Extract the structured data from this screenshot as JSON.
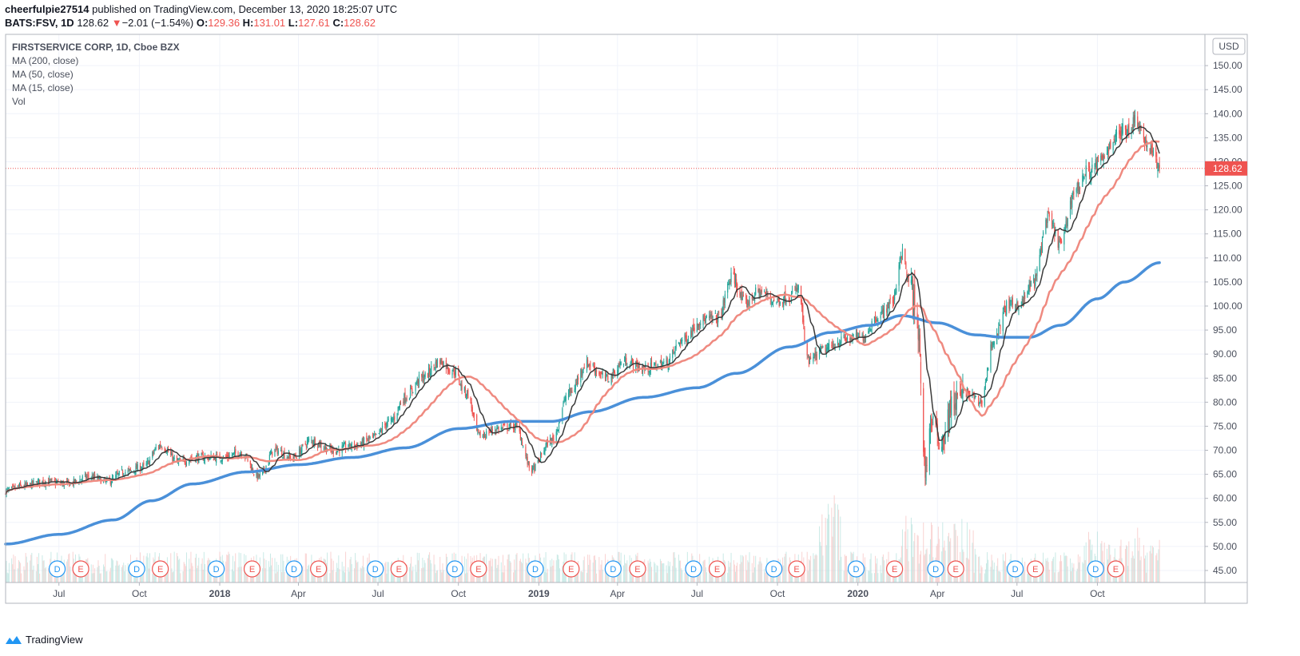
{
  "header": {
    "author": "cheerfulpie27514",
    "published_text": "published on TradingView.com, December 13, 2020 18:25:07 UTC",
    "symbol": "BATS:FSV, 1D",
    "last": "128.62",
    "change_arrow": "▼",
    "change": "−2.01 (−1.54%)",
    "o_label": "O:",
    "o_value": "129.36",
    "h_label": "H:",
    "h_value": "131.01",
    "l_label": "L:",
    "l_value": "127.61",
    "c_label": "C:",
    "c_value": "128.62"
  },
  "legend": {
    "title": "FIRSTSERVICE CORP, 1D, Cboe BZX",
    "ma200": "MA (200, close)",
    "ma50": "MA (50, close)",
    "ma15": "MA (15, close)",
    "vol": "Vol"
  },
  "footer": {
    "brand": "TradingView"
  },
  "colors": {
    "up": "#26a69a",
    "down": "#ef5350",
    "ma200": "#4a90d9",
    "ma50": "#ef8a80",
    "ma15": "#3a3a3a",
    "price_label_bg": "#ef5350"
  },
  "chart_data": {
    "type": "candlestick",
    "currency": "USD",
    "last_price": 128.62,
    "last_price_label": "128.62",
    "y_ticks": [
      45,
      50,
      55,
      60,
      65,
      70,
      75,
      80,
      85,
      90,
      95,
      100,
      105,
      110,
      115,
      120,
      125,
      130,
      135,
      140,
      145,
      150
    ],
    "y_tick_labels": [
      "45.00",
      "50.00",
      "55.00",
      "60.00",
      "65.00",
      "70.00",
      "75.00",
      "80.00",
      "85.00",
      "90.00",
      "95.00",
      "100.00",
      "105.00",
      "110.00",
      "115.00",
      "120.00",
      "125.00",
      "130.00",
      "135.00",
      "140.00",
      "145.00",
      "150.00"
    ],
    "ylim": [
      42.5,
      156.5
    ],
    "x_ticks": [
      {
        "date": "2017-07-01",
        "label": "Jul",
        "bold": false
      },
      {
        "date": "2017-10-01",
        "label": "Oct",
        "bold": false
      },
      {
        "date": "2018-01-01",
        "label": "2018",
        "bold": true
      },
      {
        "date": "2018-04-01",
        "label": "Apr",
        "bold": false
      },
      {
        "date": "2018-07-01",
        "label": "Jul",
        "bold": false
      },
      {
        "date": "2018-10-01",
        "label": "Oct",
        "bold": false
      },
      {
        "date": "2019-01-01",
        "label": "2019",
        "bold": true
      },
      {
        "date": "2019-04-01",
        "label": "Apr",
        "bold": false
      },
      {
        "date": "2019-07-01",
        "label": "Jul",
        "bold": false
      },
      {
        "date": "2019-10-01",
        "label": "Oct",
        "bold": false
      },
      {
        "date": "2020-01-01",
        "label": "2020",
        "bold": true
      },
      {
        "date": "2020-04-01",
        "label": "Apr",
        "bold": false
      },
      {
        "date": "2020-07-01",
        "label": "Jul",
        "bold": false
      },
      {
        "date": "2020-10-01",
        "label": "Oct",
        "bold": false
      }
    ],
    "xlim": [
      "2017-05-01",
      "2021-02-01"
    ],
    "events": [
      {
        "type": "D",
        "date": "2017-06-29"
      },
      {
        "type": "E",
        "date": "2017-07-26"
      },
      {
        "type": "D",
        "date": "2017-09-28"
      },
      {
        "type": "E",
        "date": "2017-10-25"
      },
      {
        "type": "D",
        "date": "2017-12-28"
      },
      {
        "type": "E",
        "date": "2018-02-07"
      },
      {
        "type": "D",
        "date": "2018-03-27"
      },
      {
        "type": "E",
        "date": "2018-04-24"
      },
      {
        "type": "D",
        "date": "2018-06-28"
      },
      {
        "type": "E",
        "date": "2018-07-25"
      },
      {
        "type": "D",
        "date": "2018-09-27"
      },
      {
        "type": "E",
        "date": "2018-10-24"
      },
      {
        "type": "D",
        "date": "2018-12-28"
      },
      {
        "type": "E",
        "date": "2019-02-07"
      },
      {
        "type": "D",
        "date": "2019-03-27"
      },
      {
        "type": "E",
        "date": "2019-04-24"
      },
      {
        "type": "D",
        "date": "2019-06-27"
      },
      {
        "type": "E",
        "date": "2019-07-24"
      },
      {
        "type": "D",
        "date": "2019-09-27"
      },
      {
        "type": "E",
        "date": "2019-10-23"
      },
      {
        "type": "D",
        "date": "2019-12-30"
      },
      {
        "type": "E",
        "date": "2020-02-12"
      },
      {
        "type": "D",
        "date": "2020-03-30"
      },
      {
        "type": "E",
        "date": "2020-04-22"
      },
      {
        "type": "D",
        "date": "2020-06-29"
      },
      {
        "type": "E",
        "date": "2020-07-22"
      },
      {
        "type": "D",
        "date": "2020-09-29"
      },
      {
        "type": "E",
        "date": "2020-10-22"
      }
    ],
    "price_anchors": [
      [
        "2017-05-01",
        61.5
      ],
      [
        "2017-05-20",
        62.5
      ],
      [
        "2017-06-15",
        63.5
      ],
      [
        "2017-07-10",
        63.0
      ],
      [
        "2017-08-05",
        64.5
      ],
      [
        "2017-08-25",
        63.5
      ],
      [
        "2017-09-15",
        65.5
      ],
      [
        "2017-10-05",
        66.5
      ],
      [
        "2017-10-25",
        71.0
      ],
      [
        "2017-11-15",
        67.5
      ],
      [
        "2017-12-05",
        68.5
      ],
      [
        "2018-01-05",
        68.5
      ],
      [
        "2018-01-25",
        69.5
      ],
      [
        "2018-02-15",
        64.5
      ],
      [
        "2018-03-05",
        70.0
      ],
      [
        "2018-03-25",
        68.5
      ],
      [
        "2018-04-15",
        72.0
      ],
      [
        "2018-05-10",
        70.0
      ],
      [
        "2018-06-05",
        71.0
      ],
      [
        "2018-06-25",
        72.5
      ],
      [
        "2018-07-15",
        76.0
      ],
      [
        "2018-08-01",
        81.0
      ],
      [
        "2018-08-20",
        85.0
      ],
      [
        "2018-09-10",
        88.5
      ],
      [
        "2018-09-25",
        86.5
      ],
      [
        "2018-10-10",
        82.0
      ],
      [
        "2018-10-25",
        73.0
      ],
      [
        "2018-11-15",
        74.5
      ],
      [
        "2018-12-05",
        75.0
      ],
      [
        "2018-12-24",
        66.0
      ],
      [
        "2019-01-15",
        72.0
      ],
      [
        "2019-02-05",
        82.0
      ],
      [
        "2019-02-25",
        88.0
      ],
      [
        "2019-03-20",
        85.0
      ],
      [
        "2019-04-10",
        88.5
      ],
      [
        "2019-05-01",
        87.0
      ],
      [
        "2019-05-25",
        88.0
      ],
      [
        "2019-06-15",
        93.0
      ],
      [
        "2019-07-05",
        97.0
      ],
      [
        "2019-07-25",
        97.5
      ],
      [
        "2019-08-10",
        106.0
      ],
      [
        "2019-08-25",
        100.5
      ],
      [
        "2019-09-10",
        103.0
      ],
      [
        "2019-09-30",
        101.0
      ],
      [
        "2019-10-15",
        102.0
      ],
      [
        "2019-10-25",
        103.5
      ],
      [
        "2019-11-05",
        88.5
      ],
      [
        "2019-11-25",
        91.0
      ],
      [
        "2019-12-15",
        93.0
      ],
      [
        "2020-01-05",
        93.5
      ],
      [
        "2020-01-25",
        98.0
      ],
      [
        "2020-02-10",
        101.0
      ],
      [
        "2020-02-20",
        111.0
      ],
      [
        "2020-03-01",
        104.0
      ],
      [
        "2020-03-10",
        94.0
      ],
      [
        "2020-03-18",
        66.0
      ],
      [
        "2020-03-25",
        76.0
      ],
      [
        "2020-04-05",
        72.0
      ],
      [
        "2020-04-20",
        80.0
      ],
      [
        "2020-05-05",
        82.0
      ],
      [
        "2020-05-20",
        80.0
      ],
      [
        "2020-06-05",
        93.0
      ],
      [
        "2020-06-20",
        100.0
      ],
      [
        "2020-07-05",
        100.5
      ],
      [
        "2020-07-20",
        105.0
      ],
      [
        "2020-08-05",
        118.0
      ],
      [
        "2020-08-20",
        113.0
      ],
      [
        "2020-09-05",
        124.0
      ],
      [
        "2020-09-20",
        128.0
      ],
      [
        "2020-10-05",
        130.0
      ],
      [
        "2020-10-20",
        135.0
      ],
      [
        "2020-11-05",
        137.0
      ],
      [
        "2020-11-15",
        139.0
      ],
      [
        "2020-11-25",
        134.0
      ],
      [
        "2020-12-05",
        131.0
      ],
      [
        "2020-12-11",
        128.62
      ]
    ],
    "ma200_anchors": [
      [
        "2017-05-01",
        50.5
      ],
      [
        "2017-07-01",
        52.5
      ],
      [
        "2017-09-01",
        55.5
      ],
      [
        "2017-10-15",
        59.5
      ],
      [
        "2017-12-01",
        63.0
      ],
      [
        "2018-02-01",
        65.5
      ],
      [
        "2018-04-01",
        67.0
      ],
      [
        "2018-06-01",
        68.5
      ],
      [
        "2018-08-01",
        70.5
      ],
      [
        "2018-10-01",
        74.5
      ],
      [
        "2018-12-01",
        76.0
      ],
      [
        "2019-01-15",
        76.0
      ],
      [
        "2019-03-01",
        78.0
      ],
      [
        "2019-05-01",
        81.0
      ],
      [
        "2019-07-01",
        83.0
      ],
      [
        "2019-08-15",
        86.0
      ],
      [
        "2019-10-15",
        91.5
      ],
      [
        "2019-12-01",
        94.5
      ],
      [
        "2020-01-15",
        96.0
      ],
      [
        "2020-02-20",
        98.0
      ],
      [
        "2020-04-01",
        96.5
      ],
      [
        "2020-05-15",
        94.0
      ],
      [
        "2020-06-15",
        93.5
      ],
      [
        "2020-07-15",
        93.5
      ],
      [
        "2020-08-20",
        96.0
      ],
      [
        "2020-10-01",
        101.5
      ],
      [
        "2020-11-01",
        105.0
      ],
      [
        "2020-12-11",
        109.0
      ]
    ],
    "volume_note": "volume bars plotted at bottom of pane"
  }
}
